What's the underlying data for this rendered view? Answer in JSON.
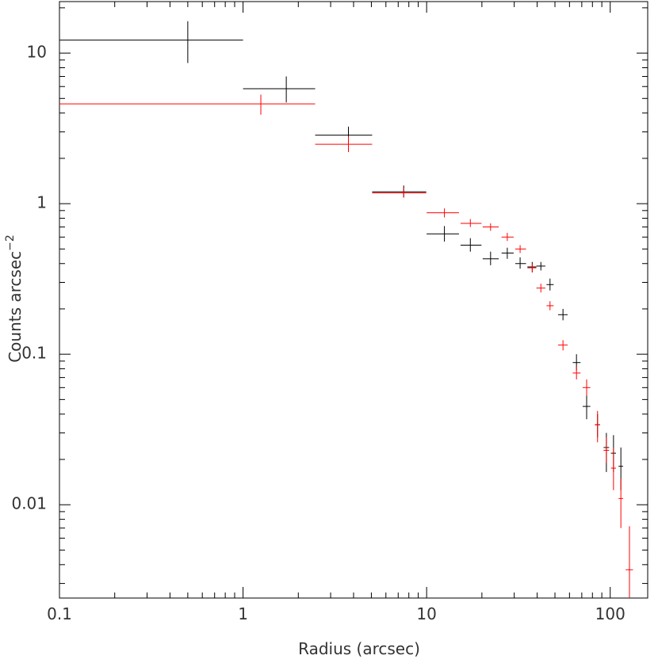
{
  "chart_data": {
    "type": "scatter",
    "title": "",
    "xlabel": "Radius (arcsec)",
    "ylabel": "Counts arcsec",
    "ylabel_exponent": "−2",
    "xscale": "log",
    "yscale": "log",
    "xlim": [
      0.1,
      160
    ],
    "ylim": [
      0.0024,
      22
    ],
    "x_ticks": [
      {
        "value": 0.1,
        "label": "0.1"
      },
      {
        "value": 1,
        "label": "1"
      },
      {
        "value": 10,
        "label": "10"
      },
      {
        "value": 100,
        "label": "100"
      }
    ],
    "y_ticks": [
      {
        "value": 0.01,
        "label": "0.01"
      },
      {
        "value": 0.1,
        "label": "0.1"
      },
      {
        "value": 1,
        "label": "1"
      },
      {
        "value": 10,
        "label": "10"
      }
    ],
    "grid": false,
    "series": [
      {
        "color": "#000000",
        "points": [
          {
            "x": 0.5,
            "xlo": 0.1,
            "xhi": 1.0,
            "y": 12.2,
            "ylo": 8.6,
            "yhi": 16.3
          },
          {
            "x": 1.72,
            "xlo": 1.0,
            "xhi": 2.47,
            "y": 5.8,
            "ylo": 4.7,
            "yhi": 7.0
          },
          {
            "x": 3.75,
            "xlo": 2.47,
            "xhi": 5.05,
            "y": 2.85,
            "ylo": 2.45,
            "yhi": 3.25
          },
          {
            "x": 7.5,
            "xlo": 5.05,
            "xhi": 9.95,
            "y": 1.2,
            "ylo": 1.1,
            "yhi": 1.32
          },
          {
            "x": 12.5,
            "xlo": 10.0,
            "xhi": 15.0,
            "y": 0.63,
            "ylo": 0.56,
            "yhi": 0.71
          },
          {
            "x": 17.3,
            "xlo": 15.3,
            "xhi": 19.9,
            "y": 0.53,
            "ylo": 0.48,
            "yhi": 0.59
          },
          {
            "x": 22.3,
            "xlo": 20.2,
            "xhi": 24.7,
            "y": 0.43,
            "ylo": 0.39,
            "yhi": 0.48
          },
          {
            "x": 27.5,
            "xlo": 25.6,
            "xhi": 29.8,
            "y": 0.47,
            "ylo": 0.43,
            "yhi": 0.51
          },
          {
            "x": 32.3,
            "xlo": 30.4,
            "xhi": 34.8,
            "y": 0.4,
            "ylo": 0.37,
            "yhi": 0.44
          },
          {
            "x": 37.6,
            "xlo": 35.4,
            "xhi": 39.6,
            "y": 0.38,
            "ylo": 0.35,
            "yhi": 0.41
          },
          {
            "x": 41.9,
            "xlo": 39.6,
            "xhi": 44.3,
            "y": 0.385,
            "ylo": 0.36,
            "yhi": 0.41
          },
          {
            "x": 47.0,
            "xlo": 45.0,
            "xhi": 49.2,
            "y": 0.29,
            "ylo": 0.265,
            "yhi": 0.318
          },
          {
            "x": 55.3,
            "xlo": 52.0,
            "xhi": 58.6,
            "y": 0.183,
            "ylo": 0.168,
            "yhi": 0.2
          },
          {
            "x": 65.5,
            "xlo": 62.5,
            "xhi": 68.9,
            "y": 0.088,
            "ylo": 0.078,
            "yhi": 0.1
          },
          {
            "x": 74.4,
            "xlo": 70.8,
            "xhi": 77.9,
            "y": 0.045,
            "ylo": 0.037,
            "yhi": 0.055
          },
          {
            "x": 85.3,
            "xlo": 82.5,
            "xhi": 88.0,
            "y": 0.034,
            "ylo": 0.028,
            "yhi": 0.04
          },
          {
            "x": 95.3,
            "xlo": 92.0,
            "xhi": 98.6,
            "y": 0.024,
            "ylo": 0.0165,
            "yhi": 0.03
          },
          {
            "x": 104.2,
            "xlo": 100.9,
            "xhi": 107.5,
            "y": 0.022,
            "ylo": 0.0165,
            "yhi": 0.029
          },
          {
            "x": 114.3,
            "xlo": 111.0,
            "xhi": 117.6,
            "y": 0.018,
            "ylo": 0.0125,
            "yhi": 0.024
          }
        ]
      },
      {
        "color": "#ff0000",
        "points": [
          {
            "x": 1.25,
            "xlo": 0.1,
            "xhi": 2.47,
            "y": 4.6,
            "ylo": 3.9,
            "yhi": 5.3
          },
          {
            "x": 3.75,
            "xlo": 2.47,
            "xhi": 5.05,
            "y": 2.48,
            "ylo": 2.2,
            "yhi": 2.8
          },
          {
            "x": 7.5,
            "xlo": 5.05,
            "xhi": 9.95,
            "y": 1.18,
            "ylo": 1.1,
            "yhi": 1.27
          },
          {
            "x": 12.5,
            "xlo": 10.0,
            "xhi": 15.0,
            "y": 0.87,
            "ylo": 0.81,
            "yhi": 0.93
          },
          {
            "x": 17.3,
            "xlo": 15.3,
            "xhi": 19.9,
            "y": 0.74,
            "ylo": 0.7,
            "yhi": 0.79
          },
          {
            "x": 22.3,
            "xlo": 20.2,
            "xhi": 24.7,
            "y": 0.7,
            "ylo": 0.66,
            "yhi": 0.74
          },
          {
            "x": 27.5,
            "xlo": 25.6,
            "xhi": 29.8,
            "y": 0.6,
            "ylo": 0.565,
            "yhi": 0.64
          },
          {
            "x": 32.3,
            "xlo": 30.4,
            "xhi": 34.8,
            "y": 0.5,
            "ylo": 0.47,
            "yhi": 0.53
          },
          {
            "x": 37.6,
            "xlo": 35.4,
            "xhi": 39.6,
            "y": 0.375,
            "ylo": 0.35,
            "yhi": 0.4
          },
          {
            "x": 41.9,
            "xlo": 39.6,
            "xhi": 44.3,
            "y": 0.275,
            "ylo": 0.257,
            "yhi": 0.294
          },
          {
            "x": 47.0,
            "xlo": 45.0,
            "xhi": 49.2,
            "y": 0.21,
            "ylo": 0.196,
            "yhi": 0.225
          },
          {
            "x": 55.3,
            "xlo": 52.0,
            "xhi": 58.6,
            "y": 0.115,
            "ylo": 0.106,
            "yhi": 0.124
          },
          {
            "x": 65.5,
            "xlo": 62.5,
            "xhi": 68.9,
            "y": 0.075,
            "ylo": 0.068,
            "yhi": 0.083
          },
          {
            "x": 74.4,
            "xlo": 70.8,
            "xhi": 77.9,
            "y": 0.06,
            "ylo": 0.053,
            "yhi": 0.068
          },
          {
            "x": 85.3,
            "xlo": 82.5,
            "xhi": 88.0,
            "y": 0.034,
            "ylo": 0.026,
            "yhi": 0.042
          },
          {
            "x": 95.3,
            "xlo": 92.0,
            "xhi": 98.6,
            "y": 0.023,
            "ylo": 0.019,
            "yhi": 0.028
          },
          {
            "x": 104.2,
            "xlo": 100.9,
            "xhi": 107.5,
            "y": 0.0175,
            "ylo": 0.0125,
            "yhi": 0.024
          },
          {
            "x": 114.3,
            "xlo": 111.0,
            "xhi": 117.6,
            "y": 0.011,
            "ylo": 0.007,
            "yhi": 0.015
          },
          {
            "x": 127.3,
            "xlo": 121.5,
            "xhi": 133.0,
            "y": 0.0037,
            "ylo": 0.0024,
            "yhi": 0.0072
          }
        ]
      }
    ]
  }
}
